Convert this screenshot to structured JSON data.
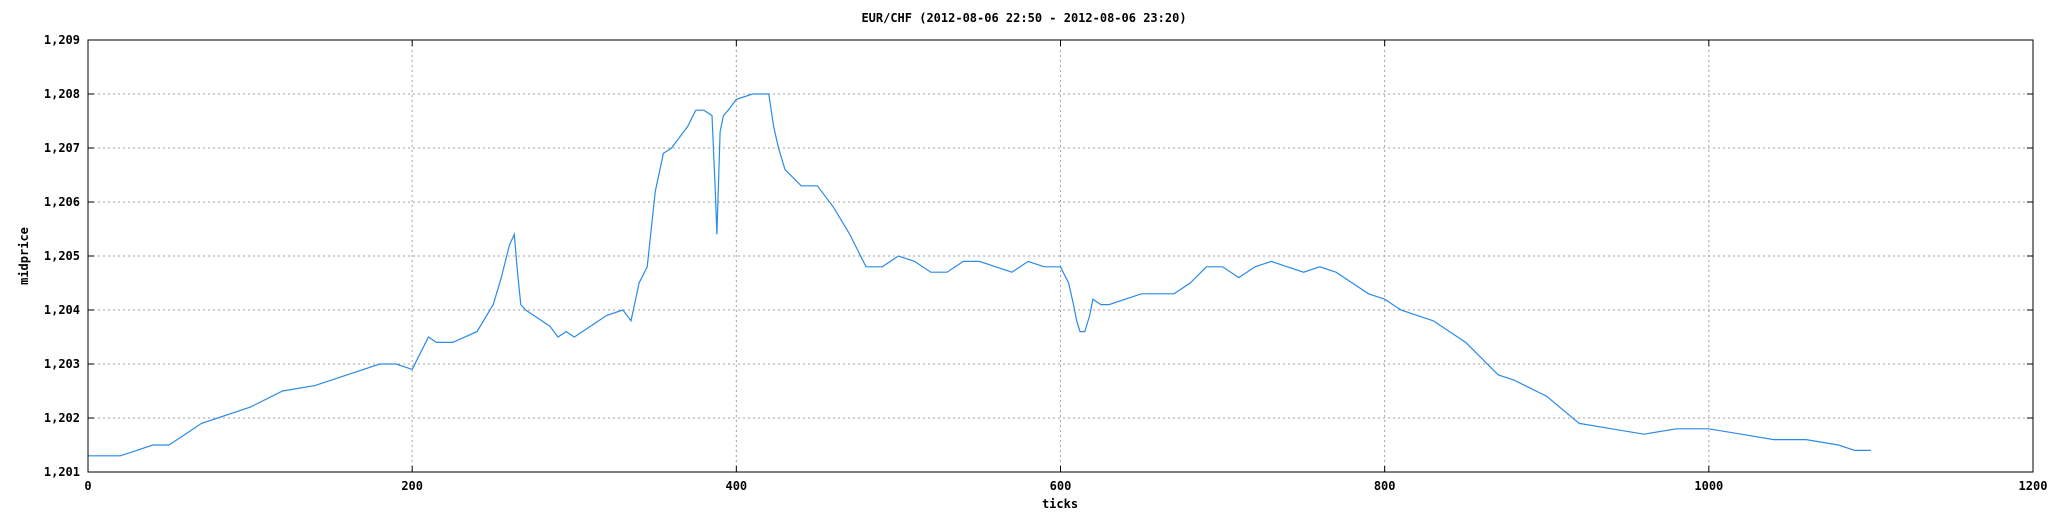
{
  "chart_data": {
    "type": "line",
    "title": "EUR/CHF (2012-08-06 22:50 - 2012-08-06 23:20)",
    "xlabel": "ticks",
    "ylabel": "midprice",
    "xlim": [
      0,
      1200
    ],
    "ylim": [
      1.201,
      1.209
    ],
    "xticks": [
      0,
      200,
      400,
      600,
      800,
      1000,
      1200
    ],
    "xtick_labels": [
      "0",
      "200",
      "400",
      "600",
      "800",
      "1000",
      "1200"
    ],
    "yticks": [
      1.201,
      1.202,
      1.203,
      1.204,
      1.205,
      1.206,
      1.207,
      1.208,
      1.209
    ],
    "ytick_labels": [
      "1,201",
      "1,202",
      "1,203",
      "1,204",
      "1,205",
      "1,206",
      "1,207",
      "1,208",
      "1,209"
    ],
    "grid": true,
    "series": [
      {
        "color": "#2b8ce6",
        "x": [
          0,
          10,
          20,
          30,
          40,
          50,
          60,
          70,
          80,
          100,
          120,
          140,
          160,
          180,
          190,
          200,
          205,
          210,
          215,
          225,
          240,
          250,
          255,
          260,
          263,
          265,
          267,
          270,
          275,
          285,
          290,
          295,
          300,
          310,
          320,
          330,
          335,
          340,
          345,
          350,
          355,
          360,
          370,
          375,
          380,
          385,
          387,
          388,
          390,
          392,
          395,
          400,
          410,
          420,
          423,
          426,
          430,
          440,
          450,
          460,
          470,
          480,
          490,
          500,
          510,
          520,
          530,
          540,
          550,
          560,
          570,
          580,
          590,
          600,
          605,
          608,
          610,
          612,
          615,
          618,
          620,
          625,
          630,
          640,
          650,
          660,
          670,
          680,
          690,
          700,
          710,
          720,
          730,
          740,
          750,
          760,
          770,
          780,
          790,
          800,
          810,
          820,
          830,
          840,
          850,
          860,
          870,
          880,
          900,
          920,
          940,
          960,
          980,
          1000,
          1020,
          1040,
          1060,
          1080,
          1090,
          1100
        ],
        "y": [
          1.2013,
          1.2013,
          1.2013,
          1.2014,
          1.2015,
          1.2015,
          1.2017,
          1.2019,
          1.202,
          1.2022,
          1.2025,
          1.2026,
          1.2028,
          1.203,
          1.203,
          1.2029,
          1.2032,
          1.2035,
          1.2034,
          1.2034,
          1.2036,
          1.2041,
          1.2046,
          1.2052,
          1.2054,
          1.2047,
          1.2041,
          1.204,
          1.2039,
          1.2037,
          1.2035,
          1.2036,
          1.2035,
          1.2037,
          1.2039,
          1.204,
          1.2038,
          1.2045,
          1.2048,
          1.2062,
          1.2069,
          1.207,
          1.2074,
          1.2077,
          1.2077,
          1.2076,
          1.2062,
          1.2054,
          1.2073,
          1.2076,
          1.2077,
          1.2079,
          1.208,
          1.208,
          1.2074,
          1.207,
          1.2066,
          1.2063,
          1.2063,
          1.2059,
          1.2054,
          1.2048,
          1.2048,
          1.205,
          1.2049,
          1.2047,
          1.2047,
          1.2049,
          1.2049,
          1.2048,
          1.2047,
          1.2049,
          1.2048,
          1.2048,
          1.2045,
          1.2041,
          1.2038,
          1.2036,
          1.2036,
          1.2039,
          1.2042,
          1.2041,
          1.2041,
          1.2042,
          1.2043,
          1.2043,
          1.2043,
          1.2045,
          1.2048,
          1.2048,
          1.2046,
          1.2048,
          1.2049,
          1.2048,
          1.2047,
          1.2048,
          1.2047,
          1.2045,
          1.2043,
          1.2042,
          1.204,
          1.2039,
          1.2038,
          1.2036,
          1.2034,
          1.2031,
          1.2028,
          1.2027,
          1.2024,
          1.2019,
          1.2018,
          1.2017,
          1.2018,
          1.2018,
          1.2017,
          1.2016,
          1.2016,
          1.2015,
          1.2014,
          1.2014
        ]
      }
    ]
  }
}
